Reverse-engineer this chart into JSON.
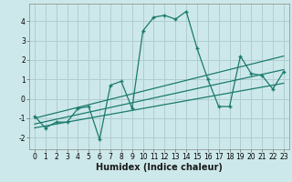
{
  "xlabel": "Humidex (Indice chaleur)",
  "background_color": "#cde8ea",
  "grid_color": "#b0cdd0",
  "line_color": "#1a7a6e",
  "xlim": [
    -0.5,
    23.5
  ],
  "ylim": [
    -2.6,
    4.9
  ],
  "yticks": [
    -2,
    -1,
    0,
    1,
    2,
    3,
    4
  ],
  "xticks": [
    0,
    1,
    2,
    3,
    4,
    5,
    6,
    7,
    8,
    9,
    10,
    11,
    12,
    13,
    14,
    15,
    16,
    17,
    18,
    19,
    20,
    21,
    22,
    23
  ],
  "curve1_x": [
    0,
    1,
    2,
    3,
    4,
    5,
    6,
    7,
    8,
    9,
    10,
    11,
    12,
    13,
    14,
    15,
    16,
    17,
    18,
    19,
    20,
    21,
    22,
    23
  ],
  "curve1_y": [
    -0.9,
    -1.5,
    -1.2,
    -1.2,
    -0.5,
    -0.4,
    -2.1,
    0.7,
    0.9,
    -0.5,
    3.5,
    4.2,
    4.3,
    4.1,
    4.5,
    2.6,
    1.0,
    -0.4,
    -0.4,
    2.2,
    1.3,
    1.2,
    0.5,
    1.4
  ],
  "line1_x": [
    0,
    23
  ],
  "line1_y": [
    -1.3,
    1.5
  ],
  "line2_x": [
    0,
    23
  ],
  "line2_y": [
    -1.0,
    2.2
  ],
  "line3_x": [
    0,
    23
  ],
  "line3_y": [
    -1.5,
    0.8
  ],
  "xlabel_fontsize": 7,
  "tick_fontsize": 5.5
}
